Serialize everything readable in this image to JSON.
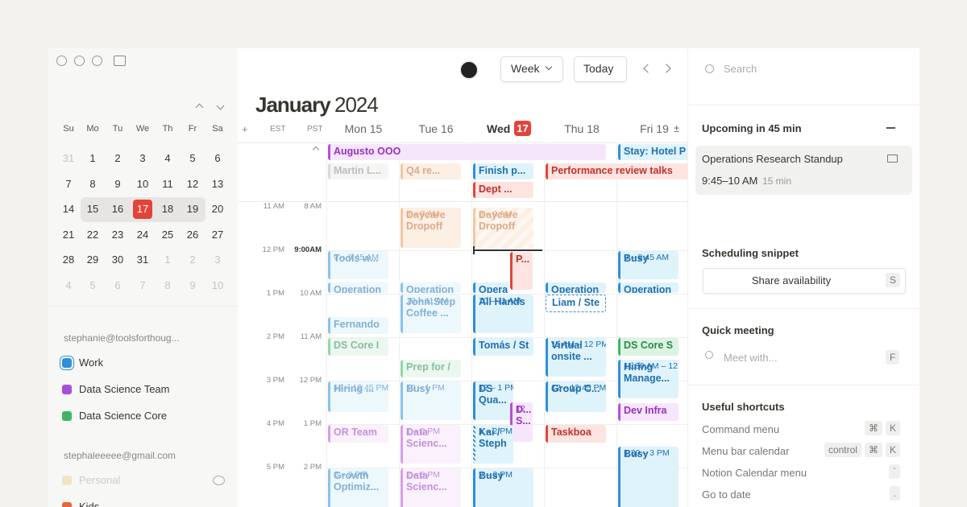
{
  "toolbar": {
    "view": "Week",
    "today": "Today"
  },
  "title": {
    "month": "January",
    "year": "2024"
  },
  "mini_calendar": {
    "weekdays": [
      "Su",
      "Mo",
      "Tu",
      "We",
      "Th",
      "Fr",
      "Sa"
    ],
    "weeks": [
      [
        31,
        1,
        2,
        3,
        4,
        5,
        6
      ],
      [
        7,
        8,
        9,
        10,
        11,
        12,
        13
      ],
      [
        14,
        15,
        16,
        17,
        18,
        19,
        20
      ],
      [
        21,
        22,
        23,
        24,
        25,
        26,
        27
      ],
      [
        28,
        29,
        30,
        31,
        1,
        2,
        3
      ],
      [
        4,
        5,
        6,
        7,
        8,
        9,
        10
      ]
    ]
  },
  "accounts": [
    {
      "email": "stephanie@toolsforthoug...",
      "calendars": [
        {
          "name": "Work",
          "color": "#2f8fd8"
        },
        {
          "name": "Data Science Team",
          "color": "#a64fd8"
        },
        {
          "name": "Data Science Core",
          "color": "#3fb665"
        }
      ]
    },
    {
      "email": "stephaleeeee@gmail.com",
      "calendars": [
        {
          "name": "Personal",
          "color": "#f3e3c6"
        },
        {
          "name": "Kids",
          "color": "#e8663a"
        }
      ]
    }
  ],
  "week_header": {
    "add": "+",
    "timezones": [
      "EST",
      "PST"
    ],
    "days": [
      "Mon 15",
      "Tue 16",
      "Wed",
      "Thu 18",
      "Fri 19"
    ],
    "today_badge": "17",
    "more": "±"
  },
  "time_labels": [
    [
      "11 AM",
      "8 AM"
    ],
    [
      "12 PM",
      "9:00AM"
    ],
    [
      "1 PM",
      "10 AM"
    ],
    [
      "2 PM",
      "11 AM"
    ],
    [
      "3 PM",
      "12 PM"
    ],
    [
      "4 PM",
      "1 PM"
    ],
    [
      "5 PM",
      "2 PM"
    ]
  ],
  "events": [
    {
      "title": "Augusto OOO"
    },
    {
      "title": "Stay: Hotel P"
    },
    {
      "title": "Martin L..."
    },
    {
      "title": "Q4 re..."
    },
    {
      "title": "Finish p..."
    },
    {
      "title": "Performance review talks"
    },
    {
      "title": "Dept ..."
    },
    {
      "title": "Daycare Dropoff",
      "time": "8 – 9 AM"
    },
    {
      "title": "Daycare Dropoff",
      "time": "8 – 9 AM"
    },
    {
      "title": "P..."
    },
    {
      "title": "Tools w...",
      "time": "9 – 9:45 AM"
    },
    {
      "title": "Busy",
      "time": "9 – 9:45 AM"
    },
    {
      "title": "Operation"
    },
    {
      "title": "Operation"
    },
    {
      "title": "Opera"
    },
    {
      "title": "Operation"
    },
    {
      "title": "Operation"
    },
    {
      "title": "John:Step Coffee ...",
      "time": "10 – 11 AM"
    },
    {
      "title": "All Hands",
      "time": "10 – 11 AM"
    },
    {
      "title": "Liam / Ste"
    },
    {
      "title": "Fernando"
    },
    {
      "title": "DS Core I"
    },
    {
      "title": "Tomás / St"
    },
    {
      "title": "Virtual onsite ...",
      "time": "11 AM – 12 PM"
    },
    {
      "title": "DS Core S"
    },
    {
      "title": "Prep for /"
    },
    {
      "title": "Hiring Manage...",
      "time": "11:30 AM – 12..."
    },
    {
      "title": "Hiring ...",
      "time": "12 – 12:45 PM"
    },
    {
      "title": "Busy",
      "time": "12 – 1 PM"
    },
    {
      "title": "DS Qua...",
      "time": "12 – 1 PM"
    },
    {
      "title": "Group C...",
      "time": "12 – 12:45 PM"
    },
    {
      "title": "D... S...",
      "time": "12"
    },
    {
      "title": "Dev Infra"
    },
    {
      "title": "OR Team"
    },
    {
      "title": "Data Scienc...",
      "time": "1 – 2 PM"
    },
    {
      "title": "Kai / Steph",
      "time": "1 – 2 PM"
    },
    {
      "title": "Taskboa"
    },
    {
      "title": "Busy",
      "time": "1:30 – 3 PM"
    },
    {
      "title": "Growth Optimiz...",
      "time": "2 – 3 PM"
    },
    {
      "title": "Data Scienc...",
      "time": "2 – 3 PM"
    },
    {
      "title": "Busy",
      "time": "2 – 3 PM"
    }
  ],
  "right_panel": {
    "search": "Search",
    "upcoming": {
      "heading": "Upcoming in 45 min",
      "event": "Operations Research Standup",
      "time": "9:45–10 AM",
      "duration": "15 min"
    },
    "snippet": {
      "heading": "Scheduling snippet",
      "button": "Share availability",
      "key": "S"
    },
    "quick_meeting": {
      "heading": "Quick meeting",
      "placeholder": "Meet with...",
      "key": "F"
    },
    "shortcuts": {
      "heading": "Useful shortcuts",
      "items": [
        {
          "label": "Command menu",
          "keys": [
            "⌘",
            "K"
          ]
        },
        {
          "label": "Menu bar calendar",
          "keys": [
            "control",
            "⌘",
            "K"
          ]
        },
        {
          "label": "Notion Calendar menu",
          "keys": [
            "`"
          ]
        },
        {
          "label": "Go to date",
          "keys": [
            "."
          ]
        }
      ]
    }
  }
}
